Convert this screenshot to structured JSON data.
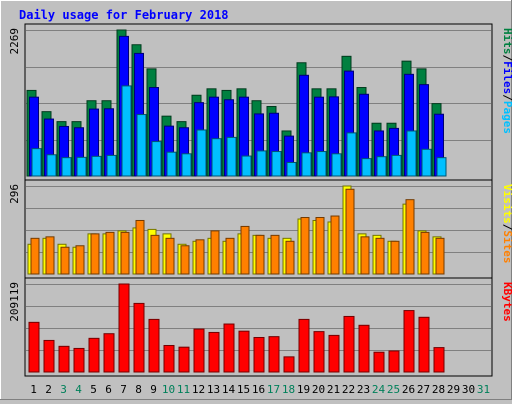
{
  "chart_data": {
    "type": "bar",
    "title": "Daily usage for February 2018",
    "categories": [
      "1",
      "2",
      "3",
      "4",
      "5",
      "6",
      "7",
      "8",
      "9",
      "10",
      "11",
      "12",
      "13",
      "14",
      "15",
      "16",
      "17",
      "18",
      "19",
      "20",
      "21",
      "22",
      "23",
      "24",
      "25",
      "26",
      "27",
      "28",
      "29",
      "30",
      "31"
    ],
    "weekend_days": [
      "3",
      "4",
      "10",
      "11",
      "17",
      "18",
      "24",
      "25",
      "31"
    ],
    "panels": [
      {
        "id": "top",
        "ymax": 2269,
        "max_label": "2269",
        "legend": [
          "Pages",
          "/",
          "Files",
          "/",
          "Hits"
        ],
        "legend_colors": [
          "#00c0ff",
          "#000000",
          "#0000ff",
          "#000000",
          "#008040"
        ],
        "series": [
          {
            "name": "Hits",
            "color": "#008040",
            "values": [
              1330,
              1000,
              845,
              845,
              1170,
              1170,
              2269,
              2040,
              1665,
              930,
              845,
              1255,
              1355,
              1330,
              1355,
              1170,
              1080,
              700,
              1760,
              1355,
              1355,
              1860,
              1375,
              820,
              820,
              1785,
              1665,
              1125,
              0,
              0,
              0
            ]
          },
          {
            "name": "Files",
            "color": "#0000ff",
            "values": [
              1225,
              885,
              770,
              750,
              1040,
              1045,
              2170,
              1905,
              1375,
              775,
              750,
              1140,
              1225,
              1185,
              1225,
              965,
              975,
              620,
              1565,
              1225,
              1230,
              1630,
              1270,
              700,
              740,
              1580,
              1420,
              960,
              0,
              0,
              0
            ]
          },
          {
            "name": "Pages",
            "color": "#00c0ff",
            "values": [
              425,
              330,
              285,
              290,
              305,
              320,
              1400,
              955,
              535,
              370,
              345,
              715,
              580,
              600,
              310,
              390,
              380,
              210,
              360,
              380,
              345,
              670,
              270,
              300,
              320,
              700,
              415,
              285,
              0,
              0,
              0
            ]
          }
        ]
      },
      {
        "id": "middle",
        "ymax": 296,
        "max_label": "296",
        "legend": [
          "Sites",
          "/",
          "Visits"
        ],
        "legend_colors": [
          "#ff8000",
          "#000000",
          "#ffff00"
        ],
        "series": [
          {
            "name": "Visits",
            "color": "#ffff00",
            "values": [
              100,
              120,
              100,
              90,
              135,
              135,
              145,
              155,
              150,
              135,
              100,
              110,
              120,
              110,
              135,
              130,
              120,
              120,
              185,
              180,
              175,
              296,
              135,
              130,
              110,
              235,
              145,
              125,
              0,
              0,
              0
            ]
          },
          {
            "name": "Sites",
            "color": "#ff8000",
            "values": [
              120,
              125,
              90,
              95,
              135,
              140,
              140,
              180,
              130,
              120,
              95,
              115,
              145,
              120,
              160,
              130,
              130,
              110,
              190,
              190,
              195,
              285,
              125,
              120,
              110,
              250,
              140,
              120,
              0,
              0,
              0
            ]
          }
        ]
      },
      {
        "id": "bottom",
        "ymax": 209119,
        "max_label": "209119",
        "legend": [
          "KBytes"
        ],
        "legend_colors": [
          "#ff0000"
        ],
        "series": [
          {
            "name": "KBytes",
            "color": "#ff0000",
            "values": [
              118000,
              75000,
              61000,
              56000,
              80000,
              91000,
              209119,
              163000,
              125000,
              63000,
              59000,
              102000,
              94000,
              114000,
              97000,
              82000,
              84000,
              36000,
              125000,
              96000,
              87000,
              132000,
              111000,
              47000,
              50000,
              146000,
              130000,
              58000,
              0,
              0,
              0
            ]
          }
        ]
      }
    ]
  }
}
